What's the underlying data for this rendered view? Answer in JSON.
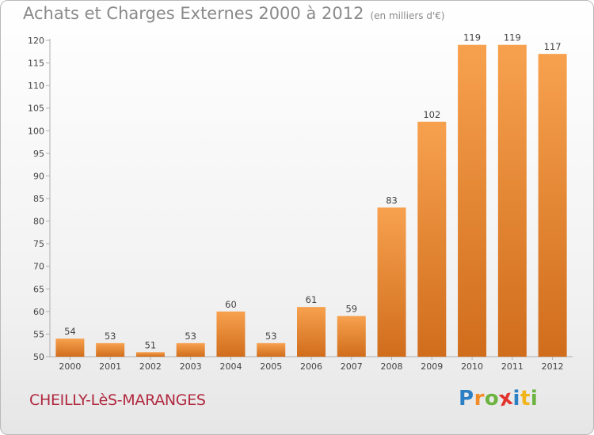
{
  "chart_data": {
    "type": "bar",
    "title": "Achats et Charges Externes 2000 à 2012",
    "subtitle": "(en milliers d'€)",
    "categories": [
      "2000",
      "2001",
      "2002",
      "2003",
      "2004",
      "2005",
      "2006",
      "2007",
      "2008",
      "2009",
      "2010",
      "2011",
      "2012"
    ],
    "values": [
      54,
      53,
      51,
      53,
      60,
      53,
      61,
      59,
      83,
      102,
      119,
      119,
      117
    ],
    "ylim": [
      50,
      120
    ],
    "yticks": [
      50,
      55,
      60,
      65,
      70,
      75,
      80,
      85,
      90,
      95,
      100,
      105,
      110,
      115,
      120
    ],
    "xlabel": "",
    "ylabel": "",
    "grid": false,
    "bar_color_top": "#f7a14e",
    "bar_color_bottom": "#d06d1c"
  },
  "commune": "CHEILLY-LèS-MARANGES",
  "logo": {
    "text": "Proxiti",
    "letters": [
      {
        "ch": "P",
        "color": "#2d7fc4"
      },
      {
        "ch": "r",
        "color": "#f28c28"
      },
      {
        "ch": "o",
        "color": "#6cb33f"
      },
      {
        "ch": "x",
        "color": "#e2322d"
      },
      {
        "ch": "i",
        "color": "#2d7fc4"
      },
      {
        "ch": "t",
        "color": "#f2b418"
      },
      {
        "ch": "i",
        "color": "#6cb33f"
      }
    ]
  }
}
